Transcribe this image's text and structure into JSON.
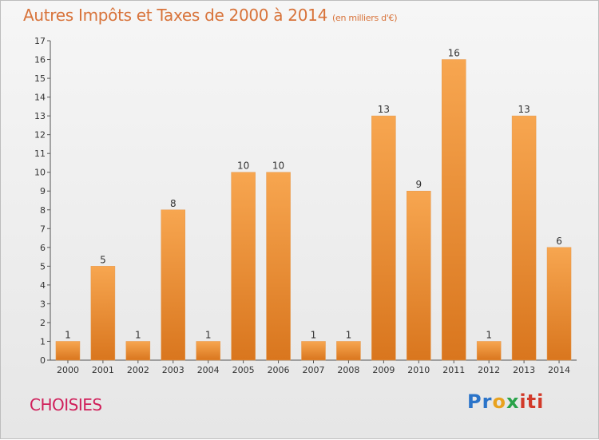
{
  "header": {
    "title": "Autres Impôts et Taxes de 2000 à 2014",
    "unit": "(en milliers d'€)"
  },
  "footer": {
    "commune": "CHOISIES",
    "logo": [
      "Pr",
      "o",
      "x",
      "iti"
    ]
  },
  "colors": {
    "bar_top": "#f7a650",
    "bar_bottom": "#d9761e",
    "title": "#d8733a",
    "commune": "#d01f5a"
  },
  "chart_data": {
    "type": "bar",
    "title": "Autres Impôts et Taxes de 2000 à 2014",
    "subtitle": "(en milliers d'€)",
    "categories": [
      "2000",
      "2001",
      "2002",
      "2003",
      "2004",
      "2005",
      "2006",
      "2007",
      "2008",
      "2009",
      "2010",
      "2011",
      "2012",
      "2013",
      "2014"
    ],
    "values": [
      1,
      5,
      1,
      8,
      1,
      10,
      10,
      1,
      1,
      13,
      9,
      16,
      1,
      13,
      6
    ],
    "ylim": [
      0,
      17
    ],
    "yticks": [
      0,
      1,
      2,
      3,
      4,
      5,
      6,
      7,
      8,
      9,
      10,
      11,
      12,
      13,
      14,
      15,
      16,
      17
    ],
    "grid": false
  }
}
